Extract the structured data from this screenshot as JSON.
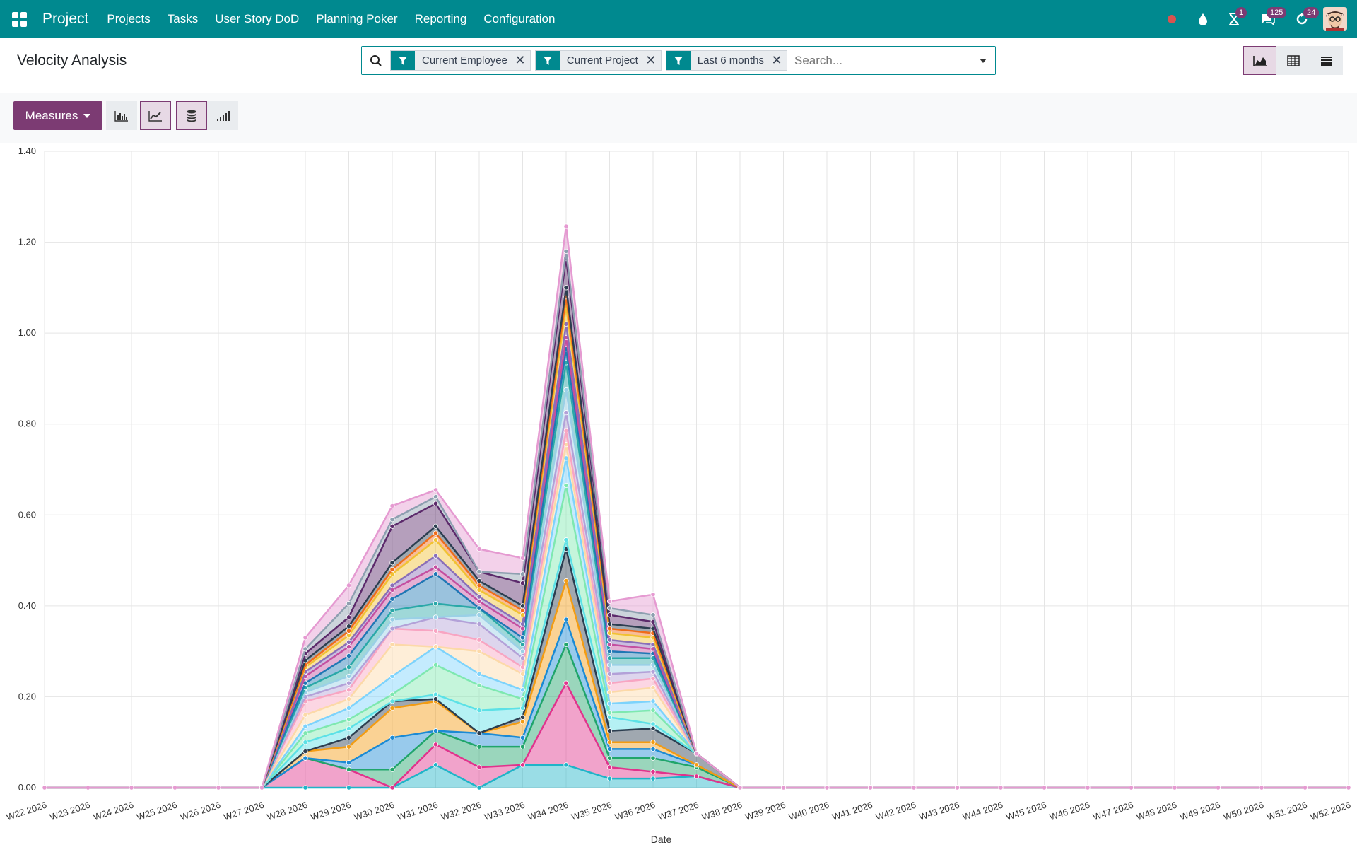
{
  "navbar": {
    "app_name": "Project",
    "menu": [
      "Projects",
      "Tasks",
      "User Story DoD",
      "Planning Poker",
      "Reporting",
      "Configuration"
    ],
    "badges": {
      "activities": "1",
      "messages": "125",
      "updates": "24"
    }
  },
  "control": {
    "title": "Velocity Analysis",
    "facets": [
      "Current Employee",
      "Current Project",
      "Last 6 months"
    ],
    "search_placeholder": "Search..."
  },
  "toolbar": {
    "measures_label": "Measures"
  },
  "colors": {
    "brand": "#00898f",
    "accent": "#7c3b73"
  },
  "chart_data": {
    "type": "area",
    "stacked": true,
    "xlabel": "Date",
    "ylabel": "",
    "ylim": [
      0,
      1.4
    ],
    "yticks": [
      "0.00",
      "0.20",
      "0.40",
      "0.60",
      "0.80",
      "1.00",
      "1.20",
      "1.40"
    ],
    "categories": [
      "W22 2026",
      "W23 2026",
      "W24 2026",
      "W25 2026",
      "W26 2026",
      "W27 2026",
      "W28 2026",
      "W29 2026",
      "W30 2026",
      "W31 2026",
      "W32 2026",
      "W33 2026",
      "W34 2026",
      "W35 2026",
      "W36 2026",
      "W37 2026",
      "W38 2026",
      "W39 2026",
      "W40 2026",
      "W41 2026",
      "W42 2026",
      "W43 2026",
      "W44 2026",
      "W45 2026",
      "W46 2026",
      "W47 2026",
      "W48 2026",
      "W49 2026",
      "W50 2026",
      "W51 2026",
      "W52 2026"
    ],
    "grid": true,
    "series_colors": [
      "#1fb4c8",
      "#e0338c",
      "#20a56b",
      "#1b8ad4",
      "#f39c12",
      "#2c3e50",
      "#5ce1e6",
      "#7ee8b0",
      "#7dd3fc",
      "#fcd9a8",
      "#f8a5c2",
      "#b3a1d8",
      "#9ad0e6",
      "#2aa8a8",
      "#1f77b4",
      "#c44fa0",
      "#8a6fb8",
      "#f1c232",
      "#ef6c1a",
      "#2c3e50",
      "#5c2a6b",
      "#8e9fb0",
      "#e59ad1"
    ],
    "series_values": [
      [
        0,
        0,
        0,
        0,
        0,
        0,
        0,
        0,
        0,
        0.05,
        0,
        0.05,
        0.05,
        0.02,
        0.02,
        0.025,
        0,
        0,
        0,
        0,
        0,
        0,
        0,
        0,
        0,
        0,
        0,
        0,
        0,
        0,
        0
      ],
      [
        0,
        0,
        0,
        0,
        0,
        0,
        0.065,
        0.04,
        0,
        0.045,
        0.045,
        0,
        0.18,
        0.025,
        0.015,
        0,
        0,
        0,
        0,
        0,
        0,
        0,
        0,
        0,
        0,
        0,
        0,
        0,
        0,
        0,
        0
      ],
      [
        0,
        0,
        0,
        0,
        0,
        0,
        0,
        0,
        0.04,
        0.03,
        0.045,
        0.04,
        0.085,
        0.02,
        0.03,
        0.02,
        0,
        0,
        0,
        0,
        0,
        0,
        0,
        0,
        0,
        0,
        0,
        0,
        0,
        0,
        0
      ],
      [
        0,
        0,
        0,
        0,
        0,
        0,
        0,
        0.015,
        0.07,
        0,
        0.03,
        0.02,
        0.055,
        0.02,
        0.02,
        0.005,
        0,
        0,
        0,
        0,
        0,
        0,
        0,
        0,
        0,
        0,
        0,
        0,
        0,
        0,
        0
      ],
      [
        0,
        0,
        0,
        0,
        0,
        0,
        0.015,
        0.035,
        0.065,
        0.065,
        0,
        0.035,
        0.085,
        0.015,
        0.015,
        0,
        0,
        0,
        0,
        0,
        0,
        0,
        0,
        0,
        0,
        0,
        0,
        0,
        0,
        0,
        0
      ],
      [
        0,
        0,
        0,
        0,
        0,
        0,
        0,
        0.02,
        0.015,
        0.005,
        0,
        0.01,
        0.07,
        0.025,
        0.03,
        0.025,
        0,
        0,
        0,
        0,
        0,
        0,
        0,
        0,
        0,
        0,
        0,
        0,
        0,
        0,
        0
      ],
      [
        0,
        0,
        0,
        0,
        0,
        0,
        0.02,
        0.02,
        0,
        0.01,
        0.05,
        0.02,
        0.02,
        0.03,
        0.01,
        0,
        0,
        0,
        0,
        0,
        0,
        0,
        0,
        0,
        0,
        0,
        0,
        0,
        0,
        0,
        0
      ],
      [
        0,
        0,
        0,
        0,
        0,
        0,
        0.02,
        0.02,
        0.015,
        0.065,
        0.055,
        0.02,
        0.12,
        0.01,
        0.03,
        0,
        0,
        0,
        0,
        0,
        0,
        0,
        0,
        0,
        0,
        0,
        0,
        0,
        0,
        0,
        0
      ],
      [
        0,
        0,
        0,
        0,
        0,
        0,
        0.015,
        0.025,
        0.04,
        0.04,
        0.025,
        0.02,
        0.06,
        0.02,
        0.02,
        0,
        0,
        0,
        0,
        0,
        0,
        0,
        0,
        0,
        0,
        0,
        0,
        0,
        0,
        0,
        0
      ],
      [
        0,
        0,
        0,
        0,
        0,
        0,
        0.025,
        0.02,
        0.07,
        0.0,
        0.05,
        0.035,
        0.03,
        0.025,
        0.03,
        0,
        0,
        0,
        0,
        0,
        0,
        0,
        0,
        0,
        0,
        0,
        0,
        0,
        0,
        0,
        0
      ],
      [
        0,
        0,
        0,
        0,
        0,
        0,
        0.03,
        0.02,
        0.035,
        0.035,
        0.025,
        0.015,
        0.03,
        0.02,
        0.02,
        0,
        0,
        0,
        0,
        0,
        0,
        0,
        0,
        0,
        0,
        0,
        0,
        0,
        0,
        0,
        0
      ],
      [
        0,
        0,
        0,
        0,
        0,
        0,
        0.01,
        0.015,
        0,
        0.03,
        0.035,
        0.02,
        0.04,
        0.02,
        0.015,
        0,
        0,
        0,
        0,
        0,
        0,
        0,
        0,
        0,
        0,
        0,
        0,
        0,
        0,
        0,
        0
      ],
      [
        0,
        0,
        0,
        0,
        0,
        0,
        0.01,
        0.015,
        0.02,
        0,
        0.02,
        0.015,
        0.05,
        0.02,
        0.015,
        0,
        0,
        0,
        0,
        0,
        0,
        0,
        0,
        0,
        0,
        0,
        0,
        0,
        0,
        0,
        0
      ],
      [
        0,
        0,
        0,
        0,
        0,
        0,
        0.01,
        0.02,
        0.02,
        0.03,
        0.015,
        0.015,
        0.06,
        0.015,
        0.015,
        0,
        0,
        0,
        0,
        0,
        0,
        0,
        0,
        0,
        0,
        0,
        0,
        0,
        0,
        0,
        0
      ],
      [
        0,
        0,
        0,
        0,
        0,
        0,
        0.01,
        0.025,
        0.025,
        0.065,
        0,
        0.015,
        0.03,
        0.015,
        0.01,
        0,
        0,
        0,
        0,
        0,
        0,
        0,
        0,
        0,
        0,
        0,
        0,
        0,
        0,
        0,
        0
      ],
      [
        0,
        0,
        0,
        0,
        0,
        0,
        0.015,
        0.02,
        0.02,
        0.015,
        0.015,
        0.02,
        0.025,
        0.015,
        0.01,
        0,
        0,
        0,
        0,
        0,
        0,
        0,
        0,
        0,
        0,
        0,
        0,
        0,
        0,
        0,
        0
      ],
      [
        0,
        0,
        0,
        0,
        0,
        0,
        0.01,
        0.01,
        0.01,
        0.025,
        0.01,
        0.01,
        0.03,
        0.01,
        0.01,
        0,
        0,
        0,
        0,
        0,
        0,
        0,
        0,
        0,
        0,
        0,
        0,
        0,
        0,
        0,
        0
      ],
      [
        0,
        0,
        0,
        0,
        0,
        0,
        0.01,
        0.015,
        0.025,
        0.035,
        0.015,
        0.02,
        0.04,
        0.015,
        0.015,
        0,
        0,
        0,
        0,
        0,
        0,
        0,
        0,
        0,
        0,
        0,
        0,
        0,
        0,
        0,
        0
      ],
      [
        0,
        0,
        0,
        0,
        0,
        0,
        0.005,
        0.01,
        0.01,
        0.015,
        0.01,
        0.01,
        0.02,
        0.01,
        0.01,
        0,
        0,
        0,
        0,
        0,
        0,
        0,
        0,
        0,
        0,
        0,
        0,
        0,
        0,
        0,
        0
      ],
      [
        0,
        0,
        0,
        0,
        0,
        0,
        0.01,
        0.01,
        0.015,
        0.015,
        0.01,
        0.01,
        0.02,
        0.01,
        0.01,
        0,
        0,
        0,
        0,
        0,
        0,
        0,
        0,
        0,
        0,
        0,
        0,
        0,
        0,
        0,
        0
      ],
      [
        0,
        0,
        0,
        0,
        0,
        0,
        0.015,
        0.02,
        0.08,
        0.05,
        0.02,
        0.05,
        0.065,
        0.02,
        0.015,
        0,
        0,
        0,
        0,
        0,
        0,
        0,
        0,
        0,
        0,
        0,
        0,
        0,
        0,
        0,
        0
      ],
      [
        0,
        0,
        0,
        0,
        0,
        0,
        0.01,
        0.03,
        0.015,
        0.015,
        0,
        0.02,
        0.015,
        0.015,
        0.015,
        0,
        0,
        0,
        0,
        0,
        0,
        0,
        0,
        0,
        0,
        0,
        0,
        0,
        0,
        0,
        0
      ],
      [
        0,
        0,
        0,
        0,
        0,
        0,
        0.025,
        0.04,
        0.03,
        0.015,
        0.05,
        0.035,
        0.055,
        0.015,
        0.045,
        0.0,
        0,
        0,
        0,
        0,
        0,
        0,
        0,
        0,
        0,
        0,
        0,
        0,
        0,
        0,
        0
      ]
    ]
  }
}
